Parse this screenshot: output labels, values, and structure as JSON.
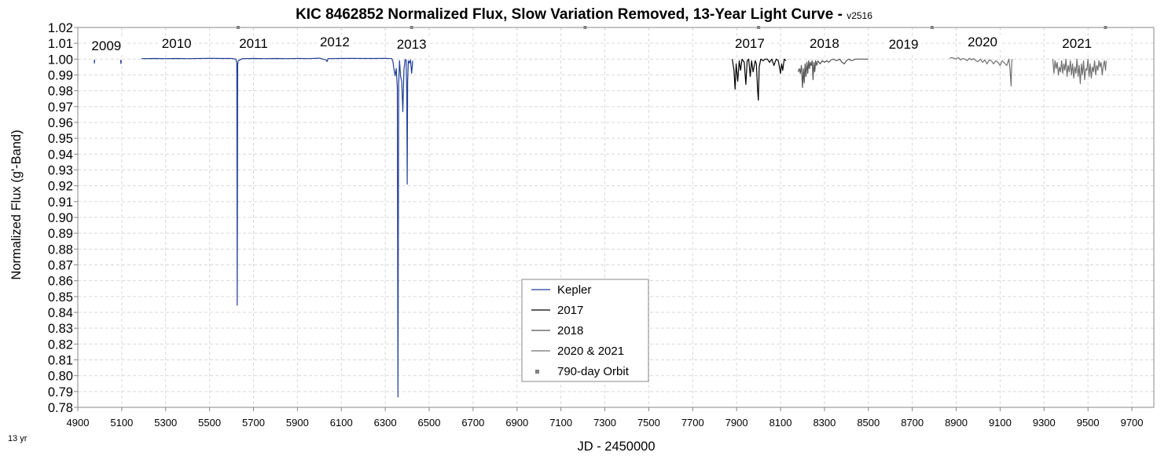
{
  "chart_data": {
    "type": "line",
    "title": "KIC 8462852 Normalized Flux, Slow Variation Removed, 13-Year Light Curve - ",
    "title_version": "v2516",
    "xlabel": "JD - 2450000",
    "ylabel": "Normalized Flux (g'-Band)",
    "footnote": "13 yr",
    "xlim": [
      4900,
      9800
    ],
    "ylim": [
      0.78,
      1.02
    ],
    "x_ticks": [
      "4900",
      "5100",
      "5300",
      "5500",
      "5700",
      "5900",
      "6100",
      "6300",
      "6500",
      "6700",
      "6900",
      "7100",
      "7300",
      "7500",
      "7700",
      "7900",
      "8100",
      "8300",
      "8500",
      "8700",
      "8900",
      "9100",
      "9300",
      "9500",
      "9700"
    ],
    "y_ticks": [
      "0.78",
      "0.79",
      "0.80",
      "0.81",
      "0.82",
      "0.83",
      "0.84",
      "0.85",
      "0.86",
      "0.87",
      "0.88",
      "0.89",
      "0.90",
      "0.91",
      "0.92",
      "0.93",
      "0.94",
      "0.95",
      "0.96",
      "0.97",
      "0.98",
      "0.99",
      "1.00",
      "1.01",
      "1.02"
    ],
    "grid": true,
    "legend_position": "bottom-center",
    "year_labels": [
      {
        "text": "2009",
        "x": 5030,
        "y": 1.006
      },
      {
        "text": "2010",
        "x": 5350,
        "y": 1.0075
      },
      {
        "text": "2011",
        "x": 5700,
        "y": 1.0075
      },
      {
        "text": "2012",
        "x": 6070,
        "y": 1.0085
      },
      {
        "text": "2013",
        "x": 6420,
        "y": 1.007
      },
      {
        "text": "2017",
        "x": 7960,
        "y": 1.0075
      },
      {
        "text": "2018",
        "x": 8300,
        "y": 1.0075
      },
      {
        "text": "2019",
        "x": 8660,
        "y": 1.007
      },
      {
        "text": "2020",
        "x": 9020,
        "y": 1.0085
      },
      {
        "text": "2021",
        "x": 9450,
        "y": 1.0075
      }
    ],
    "series": [
      {
        "name": "Kepler",
        "color": "#1f3f99",
        "segments": [
          [
            [
              4975,
              0.9995
            ],
            [
              4975,
              0.9975
            ],
            [
              4977,
              0.9995
            ]
          ],
          [
            [
              5095,
              0.9995
            ],
            [
              5096,
              0.9972
            ],
            [
              5098,
              0.9993
            ]
          ],
          [
            [
              5190,
              1.0003
            ],
            [
              5250,
              1.0004
            ],
            [
              5300,
              1.0003
            ],
            [
              5350,
              1.0004
            ],
            [
              5400,
              1.0003
            ],
            [
              5450,
              1.0004
            ],
            [
              5500,
              1.0005
            ],
            [
              5550,
              1.0004
            ],
            [
              5600,
              1.0004
            ],
            [
              5620,
              1.0
            ],
            [
              5622,
              0.9985
            ],
            [
              5624,
              0.9975
            ],
            [
              5626,
              0.8445
            ],
            [
              5628,
              0.9965
            ],
            [
              5630,
              0.999
            ],
            [
              5650,
              1.0003
            ],
            [
              5700,
              1.0004
            ],
            [
              5750,
              1.0003
            ],
            [
              5800,
              1.0004
            ],
            [
              5850,
              1.0003
            ],
            [
              5900,
              1.0004
            ],
            [
              5950,
              1.0003
            ],
            [
              6000,
              1.0006
            ],
            [
              6030,
              0.9995
            ],
            [
              6035,
              0.9985
            ],
            [
              6040,
              1.0003
            ],
            [
              6100,
              1.0004
            ],
            [
              6150,
              1.0005
            ],
            [
              6200,
              1.0004
            ],
            [
              6250,
              1.0004
            ],
            [
              6300,
              1.0005
            ],
            [
              6330,
              1.0003
            ],
            [
              6335,
              0.9985
            ],
            [
              6340,
              0.9935
            ],
            [
              6345,
              0.9895
            ],
            [
              6350,
              0.994
            ],
            [
              6355,
              0.982
            ],
            [
              6358,
              0.7865
            ],
            [
              6361,
              0.984
            ],
            [
              6365,
              0.999
            ],
            [
              6370,
              0.989
            ],
            [
              6375,
              0.986
            ],
            [
              6380,
              0.9668
            ],
            [
              6385,
              0.993
            ],
            [
              6390,
              0.9995
            ],
            [
              6395,
              0.9997
            ],
            [
              6398,
              0.9782
            ],
            [
              6400,
              0.921
            ],
            [
              6402,
              0.9855
            ],
            [
              6405,
              0.999
            ],
            [
              6410,
              0.9975
            ],
            [
              6415,
              0.9995
            ],
            [
              6420,
              0.991
            ],
            [
              6425,
              0.999
            ]
          ]
        ]
      },
      {
        "name": "2017",
        "color": "#000000",
        "segments": [
          [
            [
              7880,
              1.0
            ],
            [
              7888,
              0.993
            ],
            [
              7893,
              0.981
            ],
            [
              7898,
              0.997
            ],
            [
              7905,
              0.986
            ],
            [
              7912,
              0.999
            ],
            [
              7918,
              0.993
            ],
            [
              7925,
              1.0
            ],
            [
              7935,
              0.998
            ],
            [
              7942,
              0.984
            ],
            [
              7948,
              0.999
            ],
            [
              7955,
              1.0
            ],
            [
              7962,
              0.989
            ],
            [
              7968,
              0.999
            ],
            [
              7975,
              0.992
            ],
            [
              7985,
              0.999
            ],
            [
              7990,
              0.997
            ],
            [
              7995,
              0.982
            ],
            [
              7999,
              0.974
            ],
            [
              8003,
              0.995
            ],
            [
              8010,
              1.0
            ],
            [
              8020,
              0.999
            ],
            [
              8030,
              1.0
            ],
            [
              8040,
              1.0
            ],
            [
              8050,
              0.998
            ],
            [
              8060,
              1.0
            ],
            [
              8070,
              0.996
            ],
            [
              8080,
              1.0
            ],
            [
              8090,
              0.999
            ],
            [
              8100,
              0.991
            ],
            [
              8105,
              0.997
            ],
            [
              8110,
              0.993
            ],
            [
              8117,
              1.0
            ],
            [
              8125,
              0.999
            ]
          ]
        ]
      },
      {
        "name": "2018",
        "color": "#555555",
        "segments": [
          [
            [
              8180,
              0.992
            ],
            [
              8185,
              0.994
            ],
            [
              8190,
              0.991
            ],
            [
              8195,
              0.996
            ],
            [
              8200,
              0.982
            ],
            [
              8204,
              0.994
            ],
            [
              8208,
              0.985
            ],
            [
              8212,
              0.997
            ],
            [
              8216,
              0.989
            ],
            [
              8220,
              0.998
            ],
            [
              8224,
              0.991
            ],
            [
              8228,
              0.999
            ],
            [
              8232,
              0.994
            ],
            [
              8236,
              0.998
            ],
            [
              8240,
              0.996
            ],
            [
              8244,
              0.999
            ],
            [
              8248,
              0.987
            ],
            [
              8252,
              0.998
            ],
            [
              8256,
              0.992
            ],
            [
              8260,
              0.999
            ],
            [
              8265,
              0.996
            ],
            [
              8270,
              0.999
            ]
          ],
          [
            [
              8270,
              0.999
            ],
            [
              8280,
              0.997
            ],
            [
              8290,
              0.999
            ],
            [
              8300,
              0.998
            ],
            [
              8310,
              0.999
            ],
            [
              8320,
              0.998
            ],
            [
              8330,
              0.9995
            ],
            [
              8340,
              1.0
            ],
            [
              8355,
              0.999
            ],
            [
              8370,
              1.0
            ],
            [
              8380,
              0.998
            ],
            [
              8390,
              0.997
            ],
            [
              8400,
              0.999
            ],
            [
              8410,
              1.0
            ],
            [
              8425,
              0.999
            ],
            [
              8440,
              1.0
            ],
            [
              8460,
              1.0
            ],
            [
              8480,
              1.0
            ],
            [
              8500,
              1.0
            ]
          ]
        ]
      },
      {
        "name": "2020 & 2021",
        "color": "#707070",
        "segments": [
          [
            [
              8870,
              1.0005
            ],
            [
              8880,
              1.001
            ],
            [
              8890,
              1.0005
            ],
            [
              8900,
              1.0
            ],
            [
              8910,
              1.001
            ],
            [
              8920,
              0.9995
            ],
            [
              8930,
              1.0003
            ],
            [
              8940,
              1.0
            ],
            [
              8950,
              0.999
            ],
            [
              8960,
              1.0005
            ],
            [
              8970,
              0.9995
            ],
            [
              8980,
              1.0003
            ],
            [
              8990,
              0.999
            ],
            [
              9000,
              0.9985
            ],
            [
              9010,
              1.0
            ],
            [
              9020,
              0.998
            ],
            [
              9030,
              0.9995
            ],
            [
              9040,
              0.997
            ],
            [
              9050,
              0.9995
            ],
            [
              9060,
              0.999
            ],
            [
              9070,
              0.997
            ],
            [
              9080,
              0.999
            ],
            [
              9090,
              0.998
            ],
            [
              9100,
              0.996
            ],
            [
              9110,
              0.999
            ],
            [
              9120,
              0.9975
            ],
            [
              9130,
              0.996
            ],
            [
              9140,
              1.0
            ],
            [
              9145,
              0.9935
            ],
            [
              9150,
              0.983
            ],
            [
              9153,
              0.9985
            ],
            [
              9155,
              1.0
            ]
          ],
          [
            [
              9340,
              1.0
            ],
            [
              9345,
              0.991
            ],
            [
              9350,
              0.999
            ],
            [
              9355,
              0.994
            ],
            [
              9360,
              0.998
            ],
            [
              9365,
              0.99
            ],
            [
              9370,
              0.995
            ],
            [
              9375,
              0.992
            ],
            [
              9380,
              0.999
            ],
            [
              9385,
              0.991
            ],
            [
              9390,
              0.997
            ],
            [
              9395,
              0.993
            ],
            [
              9400,
              1.0
            ],
            [
              9405,
              0.989
            ],
            [
              9410,
              0.996
            ],
            [
              9415,
              0.992
            ],
            [
              9420,
              0.999
            ],
            [
              9425,
              0.99
            ],
            [
              9430,
              0.997
            ],
            [
              9435,
              0.988
            ],
            [
              9440,
              0.995
            ],
            [
              9445,
              0.991
            ],
            [
              9450,
              1.0
            ],
            [
              9455,
              0.989
            ],
            [
              9460,
              0.996
            ],
            [
              9465,
              0.9845
            ],
            [
              9470,
              0.997
            ],
            [
              9475,
              0.99
            ],
            [
              9480,
              0.999
            ],
            [
              9485,
              0.987
            ],
            [
              9490,
              0.994
            ],
            [
              9495,
              0.993
            ],
            [
              9500,
              1.0
            ],
            [
              9505,
              0.989
            ],
            [
              9510,
              0.997
            ],
            [
              9515,
              0.988
            ],
            [
              9520,
              0.995
            ],
            [
              9525,
              0.992
            ],
            [
              9530,
              0.999
            ],
            [
              9535,
              0.99
            ],
            [
              9540,
              0.996
            ],
            [
              9545,
              0.993
            ],
            [
              9550,
              0.999
            ],
            [
              9555,
              0.995
            ],
            [
              9560,
              0.998
            ],
            [
              9565,
              0.99
            ],
            [
              9570,
              0.996
            ],
            [
              9575,
              0.999
            ],
            [
              9580,
              0.993
            ],
            [
              9583,
              0.999
            ]
          ]
        ]
      }
    ],
    "orbit_markers": {
      "name": "790-day Orbit",
      "color": "#808080",
      "x": [
        5630,
        6420,
        7210,
        8000,
        8790,
        9580
      ],
      "y": 1.02
    }
  }
}
